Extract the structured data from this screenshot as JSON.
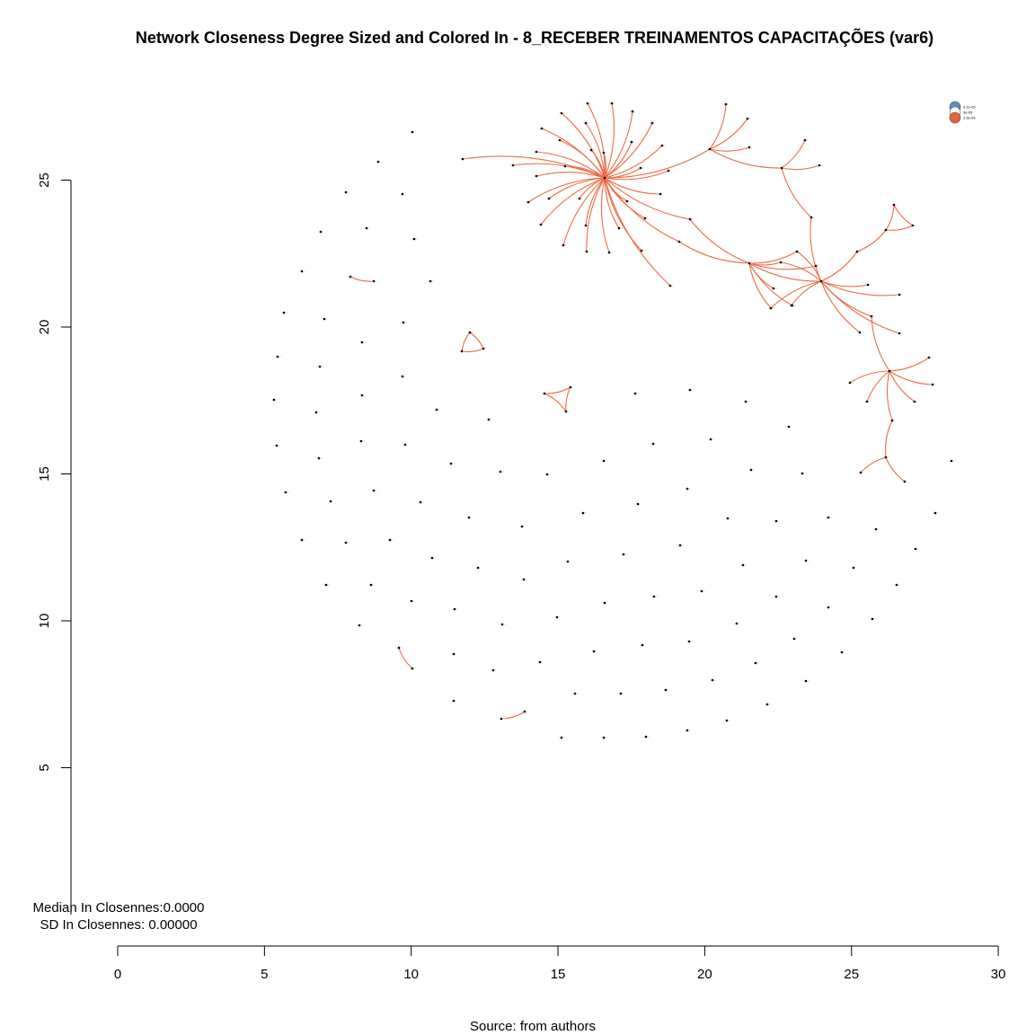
{
  "chart_data": {
    "type": "network",
    "title": "Network Closeness Degree Sized and Colored In - 8_RECEBER TREINAMENTOS CAPACITAÇÕES (var6)",
    "caption": "Source: from authors",
    "stats": {
      "median": "Median In Closennes:0.0000",
      "sd": "SD In Closennes: 0.00000"
    },
    "x_axis": {
      "ticks": [
        "0",
        "5",
        "10",
        "15",
        "20",
        "25",
        "30"
      ],
      "range": [
        0,
        30
      ]
    },
    "y_axis": {
      "ticks": [
        "5",
        "10",
        "15",
        "20",
        "25"
      ],
      "range": [
        0,
        27
      ]
    },
    "legend": [
      {
        "label": "3.1e-05",
        "color": "#5b8fbf"
      },
      {
        "label": "3e-05",
        "color": "#ffffff"
      },
      {
        "label": "2.9e-05",
        "color": "#e8633a"
      }
    ],
    "colors": {
      "edge": "#ee6a45",
      "node": "#000000",
      "axis": "#000000"
    }
  }
}
